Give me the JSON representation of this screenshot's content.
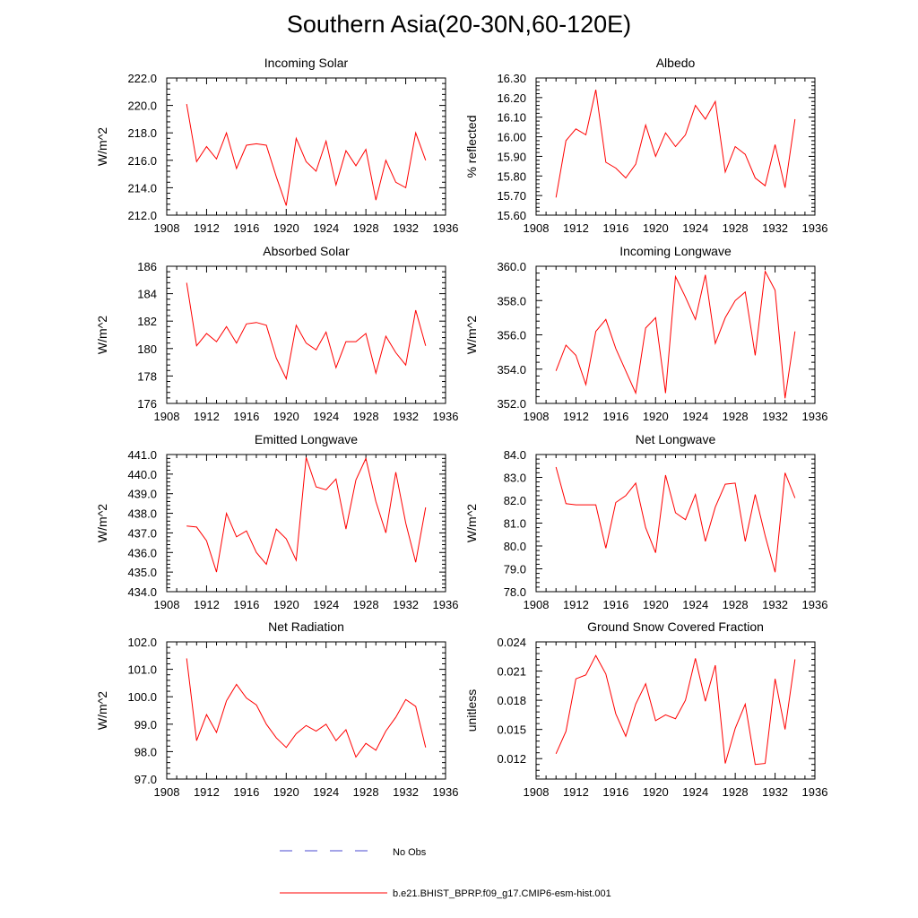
{
  "figure": {
    "title": "Southern Asia(20-30N,60-120E)",
    "legend": [
      {
        "label": "No Obs",
        "color": "#4a4ad0",
        "style": "dashed"
      },
      {
        "label": "b.e21.BHIST_BPRP.f09_g17.CMIP6-esm-hist.001",
        "color": "#ff0000",
        "style": "solid"
      }
    ]
  },
  "chart_data": [
    {
      "type": "line",
      "title": "Incoming Solar",
      "ylabel": "W/m^2",
      "xlim": [
        1908,
        1936
      ],
      "ylim": [
        212,
        222
      ],
      "xticks": [
        "1908",
        "1912",
        "1916",
        "1920",
        "1924",
        "1928",
        "1932",
        "1936"
      ],
      "yticks": [
        "212.0",
        "214.0",
        "216.0",
        "218.0",
        "220.0",
        "222.0"
      ],
      "grid": false,
      "series": [
        {
          "color": "#ff0000",
          "x": [
            1910,
            1911,
            1912,
            1913,
            1914,
            1915,
            1916,
            1917,
            1918,
            1919,
            1920,
            1921,
            1922,
            1923,
            1924,
            1925,
            1926,
            1927,
            1928,
            1929,
            1930,
            1931,
            1932,
            1933,
            1934
          ],
          "values": [
            220.1,
            215.9,
            217.0,
            216.1,
            218.0,
            215.4,
            217.1,
            217.2,
            217.1,
            214.8,
            212.7,
            217.6,
            215.9,
            215.2,
            217.4,
            214.2,
            216.7,
            215.6,
            216.8,
            213.1,
            216.0,
            214.4,
            214.0,
            218.0,
            216.0
          ]
        }
      ]
    },
    {
      "type": "line",
      "title": "Albedo",
      "ylabel": "% reflected",
      "xlim": [
        1908,
        1936
      ],
      "ylim": [
        15.6,
        16.3
      ],
      "xticks": [
        "1908",
        "1912",
        "1916",
        "1920",
        "1924",
        "1928",
        "1932",
        "1936"
      ],
      "yticks": [
        "15.60",
        "15.70",
        "15.80",
        "15.90",
        "16.00",
        "16.10",
        "16.20",
        "16.30"
      ],
      "grid": false,
      "series": [
        {
          "color": "#ff0000",
          "x": [
            1910,
            1911,
            1912,
            1913,
            1914,
            1915,
            1916,
            1917,
            1918,
            1919,
            1920,
            1921,
            1922,
            1923,
            1924,
            1925,
            1926,
            1927,
            1928,
            1929,
            1930,
            1931,
            1932,
            1933,
            1934
          ],
          "values": [
            15.69,
            15.98,
            16.04,
            16.01,
            16.24,
            15.87,
            15.84,
            15.79,
            15.86,
            16.06,
            15.9,
            16.02,
            15.95,
            16.01,
            16.16,
            16.09,
            16.18,
            15.82,
            15.95,
            15.91,
            15.79,
            15.75,
            15.96,
            15.74,
            16.09
          ]
        }
      ]
    },
    {
      "type": "line",
      "title": "Absorbed Solar",
      "ylabel": "W/m^2",
      "xlim": [
        1908,
        1936
      ],
      "ylim": [
        176,
        186
      ],
      "xticks": [
        "1908",
        "1912",
        "1916",
        "1920",
        "1924",
        "1928",
        "1932",
        "1936"
      ],
      "yticks": [
        "176",
        "178",
        "180",
        "182",
        "184",
        "186"
      ],
      "grid": false,
      "series": [
        {
          "color": "#ff0000",
          "x": [
            1910,
            1911,
            1912,
            1913,
            1914,
            1915,
            1916,
            1917,
            1918,
            1919,
            1920,
            1921,
            1922,
            1923,
            1924,
            1925,
            1926,
            1927,
            1928,
            1929,
            1930,
            1931,
            1932,
            1933,
            1934
          ],
          "values": [
            184.8,
            180.2,
            181.1,
            180.5,
            181.6,
            180.4,
            181.8,
            181.9,
            181.7,
            179.3,
            177.8,
            181.7,
            180.4,
            179.9,
            181.2,
            178.6,
            180.5,
            180.5,
            181.1,
            178.2,
            180.9,
            179.7,
            178.8,
            182.8,
            180.2
          ]
        }
      ]
    },
    {
      "type": "line",
      "title": "Incoming Longwave",
      "ylabel": "W/m^2",
      "xlim": [
        1908,
        1936
      ],
      "ylim": [
        352,
        360
      ],
      "xticks": [
        "1908",
        "1912",
        "1916",
        "1920",
        "1924",
        "1928",
        "1932",
        "1936"
      ],
      "yticks": [
        "352.0",
        "354.0",
        "356.0",
        "358.0",
        "360.0"
      ],
      "grid": false,
      "series": [
        {
          "color": "#ff0000",
          "x": [
            1910,
            1911,
            1912,
            1913,
            1914,
            1915,
            1916,
            1917,
            1918,
            1919,
            1920,
            1921,
            1922,
            1923,
            1924,
            1925,
            1926,
            1927,
            1928,
            1929,
            1930,
            1931,
            1932,
            1933,
            1934
          ],
          "values": [
            353.9,
            355.4,
            354.8,
            353.1,
            356.2,
            356.9,
            355.2,
            353.9,
            352.6,
            356.4,
            357.0,
            352.6,
            359.4,
            358.2,
            356.9,
            359.5,
            355.5,
            357.0,
            358.0,
            358.5,
            354.8,
            359.7,
            358.6,
            352.3,
            356.2
          ]
        }
      ]
    },
    {
      "type": "line",
      "title": "Emitted Longwave",
      "ylabel": "W/m^2",
      "xlim": [
        1908,
        1936
      ],
      "ylim": [
        434,
        441
      ],
      "xticks": [
        "1908",
        "1912",
        "1916",
        "1920",
        "1924",
        "1928",
        "1932",
        "1936"
      ],
      "yticks": [
        "434.0",
        "435.0",
        "436.0",
        "437.0",
        "438.0",
        "439.0",
        "440.0",
        "441.0"
      ],
      "grid": false,
      "series": [
        {
          "color": "#ff0000",
          "x": [
            1910,
            1911,
            1912,
            1913,
            1914,
            1915,
            1916,
            1917,
            1918,
            1919,
            1920,
            1921,
            1922,
            1923,
            1924,
            1925,
            1926,
            1927,
            1928,
            1929,
            1930,
            1931,
            1932,
            1933,
            1934
          ],
          "values": [
            437.35,
            437.3,
            436.6,
            435.0,
            438.0,
            436.8,
            437.1,
            436.0,
            435.4,
            437.2,
            436.7,
            435.6,
            440.85,
            439.35,
            439.2,
            439.75,
            437.2,
            439.7,
            440.8,
            438.6,
            437.0,
            440.1,
            437.5,
            435.5,
            438.3
          ]
        }
      ]
    },
    {
      "type": "line",
      "title": "Net Longwave",
      "ylabel": "W/m^2",
      "xlim": [
        1908,
        1936
      ],
      "ylim": [
        78,
        84
      ],
      "xticks": [
        "1908",
        "1912",
        "1916",
        "1920",
        "1924",
        "1928",
        "1932",
        "1936"
      ],
      "yticks": [
        "78.0",
        "79.0",
        "80.0",
        "81.0",
        "82.0",
        "83.0",
        "84.0"
      ],
      "grid": false,
      "series": [
        {
          "color": "#ff0000",
          "x": [
            1910,
            1911,
            1912,
            1913,
            1914,
            1915,
            1916,
            1917,
            1918,
            1919,
            1920,
            1921,
            1922,
            1923,
            1924,
            1925,
            1926,
            1927,
            1928,
            1929,
            1930,
            1931,
            1932,
            1933,
            1934
          ],
          "values": [
            83.45,
            81.85,
            81.8,
            81.8,
            81.8,
            79.9,
            81.9,
            82.2,
            82.75,
            80.8,
            79.7,
            83.1,
            81.45,
            81.15,
            82.25,
            80.2,
            81.7,
            82.7,
            82.75,
            80.2,
            82.25,
            80.45,
            78.85,
            83.2,
            82.1
          ]
        }
      ]
    },
    {
      "type": "line",
      "title": "Net Radiation",
      "ylabel": "W/m^2",
      "xlim": [
        1908,
        1936
      ],
      "ylim": [
        97,
        102
      ],
      "xticks": [
        "1908",
        "1912",
        "1916",
        "1920",
        "1924",
        "1928",
        "1932",
        "1936"
      ],
      "yticks": [
        "97.0",
        "98.0",
        "99.0",
        "100.0",
        "101.0",
        "102.0"
      ],
      "grid": false,
      "series": [
        {
          "color": "#ff0000",
          "x": [
            1910,
            1911,
            1912,
            1913,
            1914,
            1915,
            1916,
            1917,
            1918,
            1919,
            1920,
            1921,
            1922,
            1923,
            1924,
            1925,
            1926,
            1927,
            1928,
            1929,
            1930,
            1931,
            1932,
            1933,
            1934
          ],
          "values": [
            101.4,
            98.4,
            99.35,
            98.7,
            99.85,
            100.45,
            99.95,
            99.7,
            99.0,
            98.5,
            98.15,
            98.65,
            98.95,
            98.75,
            99.0,
            98.4,
            98.8,
            97.8,
            98.3,
            98.05,
            98.75,
            99.25,
            99.9,
            99.65,
            98.15
          ]
        }
      ]
    },
    {
      "type": "line",
      "title": "Ground Snow Covered Fraction",
      "ylabel": "unitless",
      "xlim": [
        1908,
        1936
      ],
      "ylim": [
        0.0099,
        0.024
      ],
      "xticks": [
        "1908",
        "1912",
        "1916",
        "1920",
        "1924",
        "1928",
        "1932",
        "1936"
      ],
      "yticks": [
        "0.012",
        "0.015",
        "0.018",
        "0.021",
        "0.024"
      ],
      "ytick_values": [
        0.012,
        0.015,
        0.018,
        0.021,
        0.024
      ],
      "grid": false,
      "series": [
        {
          "color": "#ff0000",
          "x": [
            1910,
            1911,
            1912,
            1913,
            1914,
            1915,
            1916,
            1917,
            1918,
            1919,
            1920,
            1921,
            1922,
            1923,
            1924,
            1925,
            1926,
            1927,
            1928,
            1929,
            1930,
            1931,
            1932,
            1933,
            1934
          ],
          "values": [
            0.0125,
            0.0148,
            0.0202,
            0.0206,
            0.0226,
            0.0207,
            0.0166,
            0.0143,
            0.0176,
            0.0197,
            0.0159,
            0.0165,
            0.0161,
            0.018,
            0.0223,
            0.0179,
            0.0216,
            0.0115,
            0.0151,
            0.0176,
            0.0114,
            0.0115,
            0.0202,
            0.015,
            0.0222
          ]
        }
      ]
    }
  ]
}
